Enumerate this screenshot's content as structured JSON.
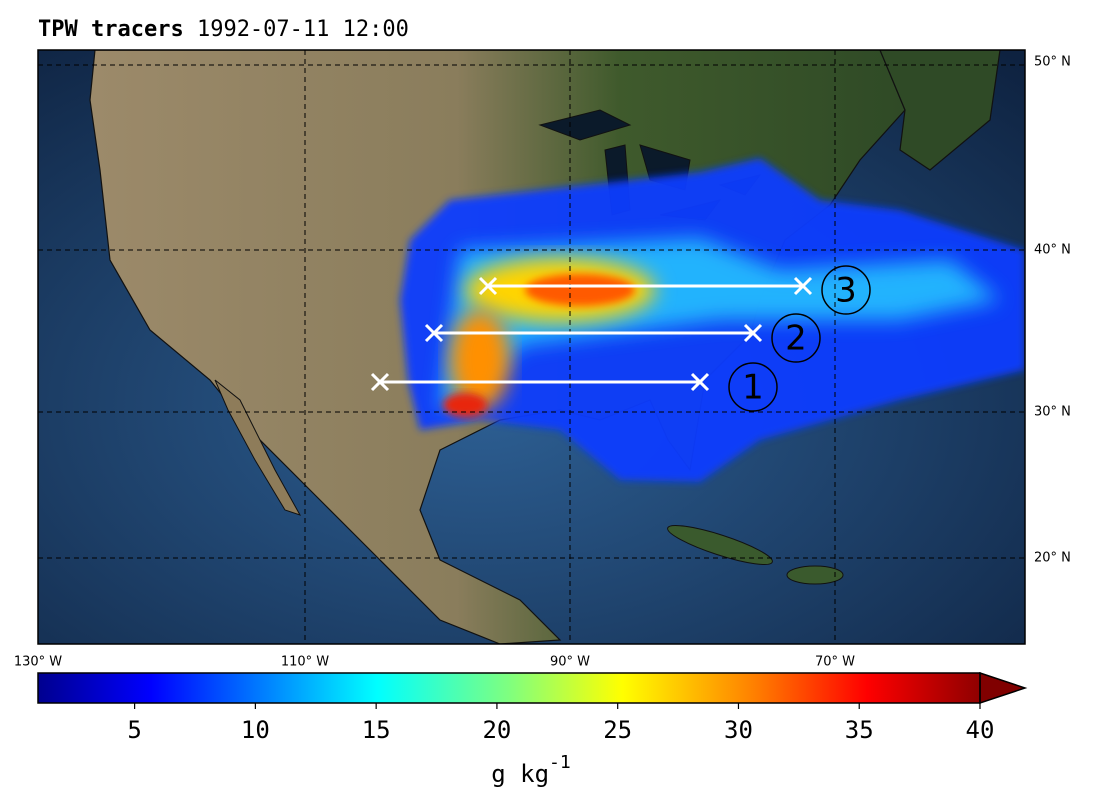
{
  "header": {
    "title_bold": "TPW tracers",
    "title_time": "1992-07-11 12:00"
  },
  "map": {
    "lat_labels": [
      "50° N",
      "40° N",
      "30° N",
      "20° N"
    ],
    "lon_labels": [
      "130° W",
      "110° W",
      "90° W",
      "70° W"
    ],
    "transects": [
      {
        "label": "1"
      },
      {
        "label": "2"
      },
      {
        "label": "3"
      }
    ]
  },
  "colorbar": {
    "lim": [
      1,
      40
    ],
    "ticks": [
      5,
      10,
      15,
      20,
      25,
      30,
      35,
      40
    ],
    "extend": "max",
    "label": "g kg",
    "label_exponent": "-1"
  }
}
